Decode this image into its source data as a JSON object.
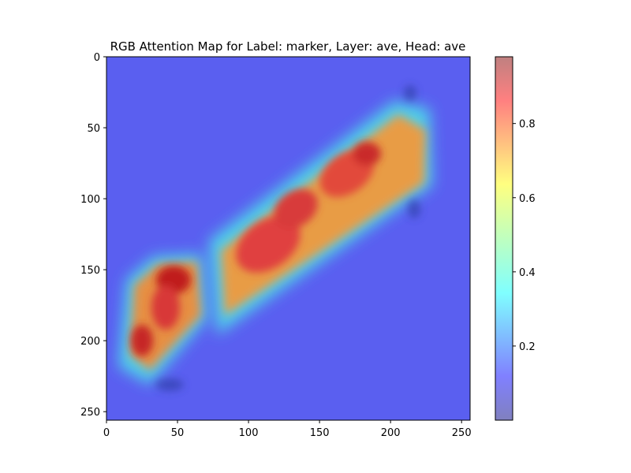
{
  "chart_data": {
    "type": "heatmap",
    "title": "RGB Attention Map for Label: marker, Layer: ave, Head: ave",
    "xlabel": "",
    "ylabel": "",
    "image_size": [
      256,
      256
    ],
    "xlim": [
      0,
      256
    ],
    "ylim": [
      256,
      0
    ],
    "x_ticks": [
      0,
      50,
      100,
      150,
      200,
      250
    ],
    "y_ticks": [
      0,
      50,
      100,
      150,
      200,
      250
    ],
    "colormap": "jet",
    "overlay_alpha": 0.5,
    "background_value": 0.1,
    "colorbar": {
      "min": 0.0,
      "max": 0.98,
      "ticks": [
        0.2,
        0.4,
        0.6,
        0.8
      ],
      "tick_labels": [
        "0.2",
        "0.4",
        "0.6",
        "0.8"
      ]
    },
    "regions": [
      {
        "x": 115,
        "y": 130,
        "value": 0.85
      },
      {
        "x": 135,
        "y": 105,
        "value": 0.9
      },
      {
        "x": 160,
        "y": 85,
        "value": 0.85
      },
      {
        "x": 180,
        "y": 70,
        "value": 0.95
      },
      {
        "x": 200,
        "y": 70,
        "value": 0.75
      },
      {
        "x": 95,
        "y": 150,
        "value": 0.75
      },
      {
        "x": 45,
        "y": 155,
        "value": 0.95
      },
      {
        "x": 35,
        "y": 180,
        "value": 0.85
      },
      {
        "x": 25,
        "y": 200,
        "value": 0.92
      },
      {
        "x": 215,
        "y": 45,
        "value": 0.3
      }
    ]
  }
}
